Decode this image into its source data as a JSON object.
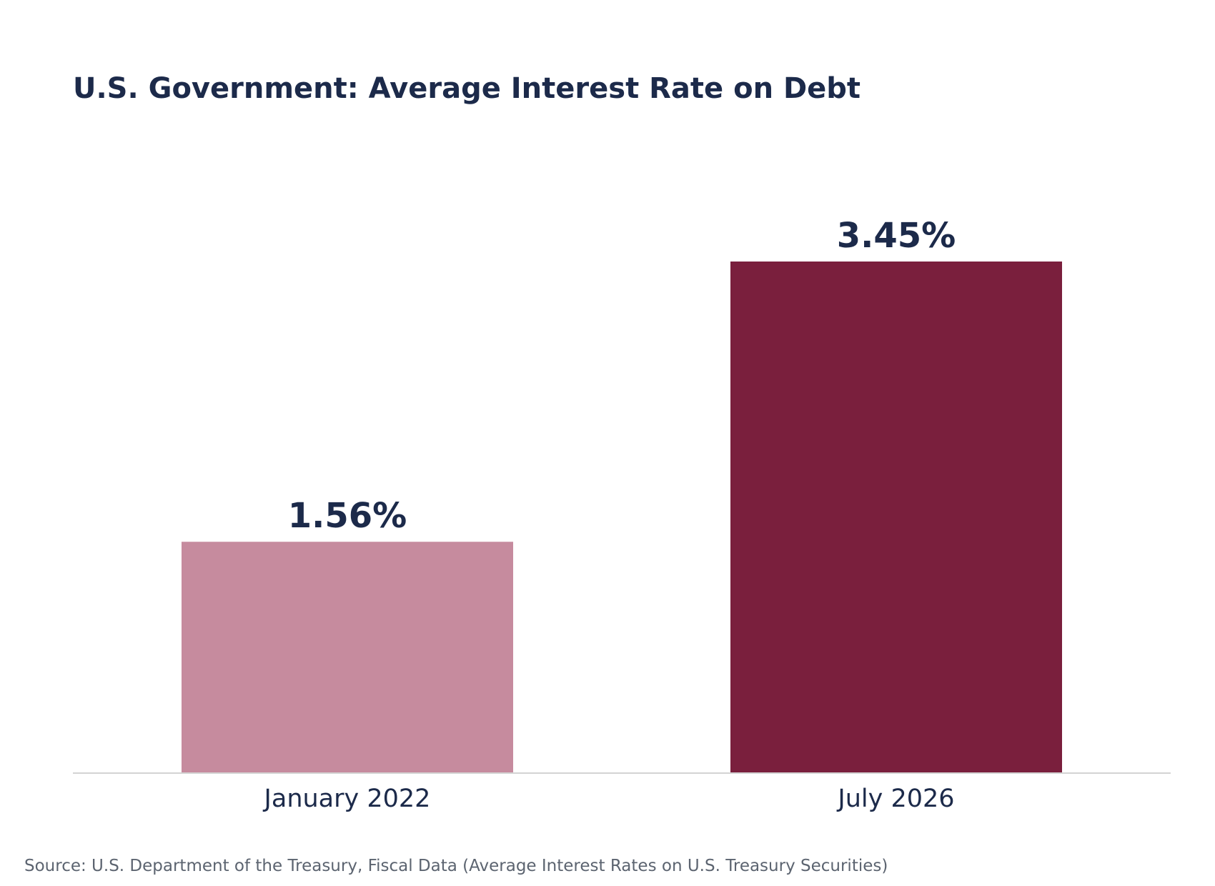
{
  "chart_data": {
    "type": "bar",
    "title": "U.S. Government: Average Interest Rate on Debt",
    "xlabel": "",
    "ylabel": "",
    "categories": [
      "January 2022",
      "July 2026"
    ],
    "values": [
      1.56,
      3.45
    ],
    "value_labels": [
      "1.56%",
      "3.45%"
    ],
    "ylim": [
      0,
      3.45
    ],
    "grid": false,
    "colors": [
      "#c68b9e",
      "#7a1f3d"
    ],
    "baseline_color": "#d3d3d3",
    "source": "Source: U.S. Department of the Treasury, Fiscal Data (Average Interest Rates on U.S. Treasury Securities)"
  }
}
